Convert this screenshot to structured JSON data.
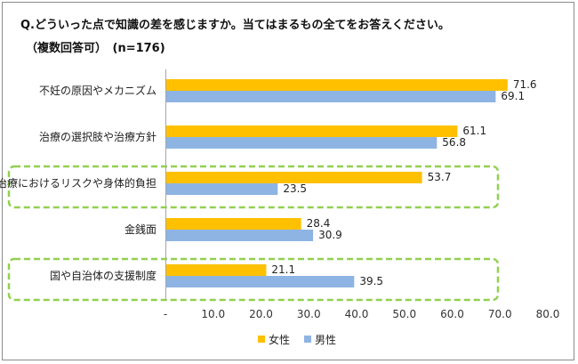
{
  "chart_data": {
    "type": "bar",
    "orientation": "horizontal",
    "title": "Q.どういった点で知識の差を感じますか。当てはまるもの全てをお答えください。",
    "subtitle": "（複数回答可）　(n=176)",
    "categories": [
      "不妊の原因やメカニズム",
      "治療の選択肢や治療方針",
      "治療におけるリスクや身体的負担",
      "金銭面",
      "国や自治体の支援制度"
    ],
    "series": [
      {
        "name": "女性",
        "color": "#ffc000",
        "values": [
          71.6,
          61.1,
          53.7,
          28.4,
          21.1
        ],
        "labels": [
          "71.6",
          "61.1",
          "53.7",
          "28.4",
          "21.1"
        ]
      },
      {
        "name": "男性",
        "color": "#8eb4e3",
        "values": [
          69.1,
          56.8,
          23.5,
          30.9,
          39.5
        ],
        "labels": [
          "69.1",
          "56.8",
          "23.5",
          "30.9",
          "39.5"
        ]
      }
    ],
    "xlim": [
      0,
      80
    ],
    "xticks": [
      "-",
      "10.0",
      "20.0",
      "30.0",
      "40.0",
      "50.0",
      "60.0",
      "70.0",
      "80.0"
    ],
    "grid": false,
    "legend_position": "bottom",
    "highlighted_categories": [
      "治療におけるリスクや身体的負担",
      "国や自治体の支援制度"
    ],
    "highlight_color": "#92d050"
  }
}
